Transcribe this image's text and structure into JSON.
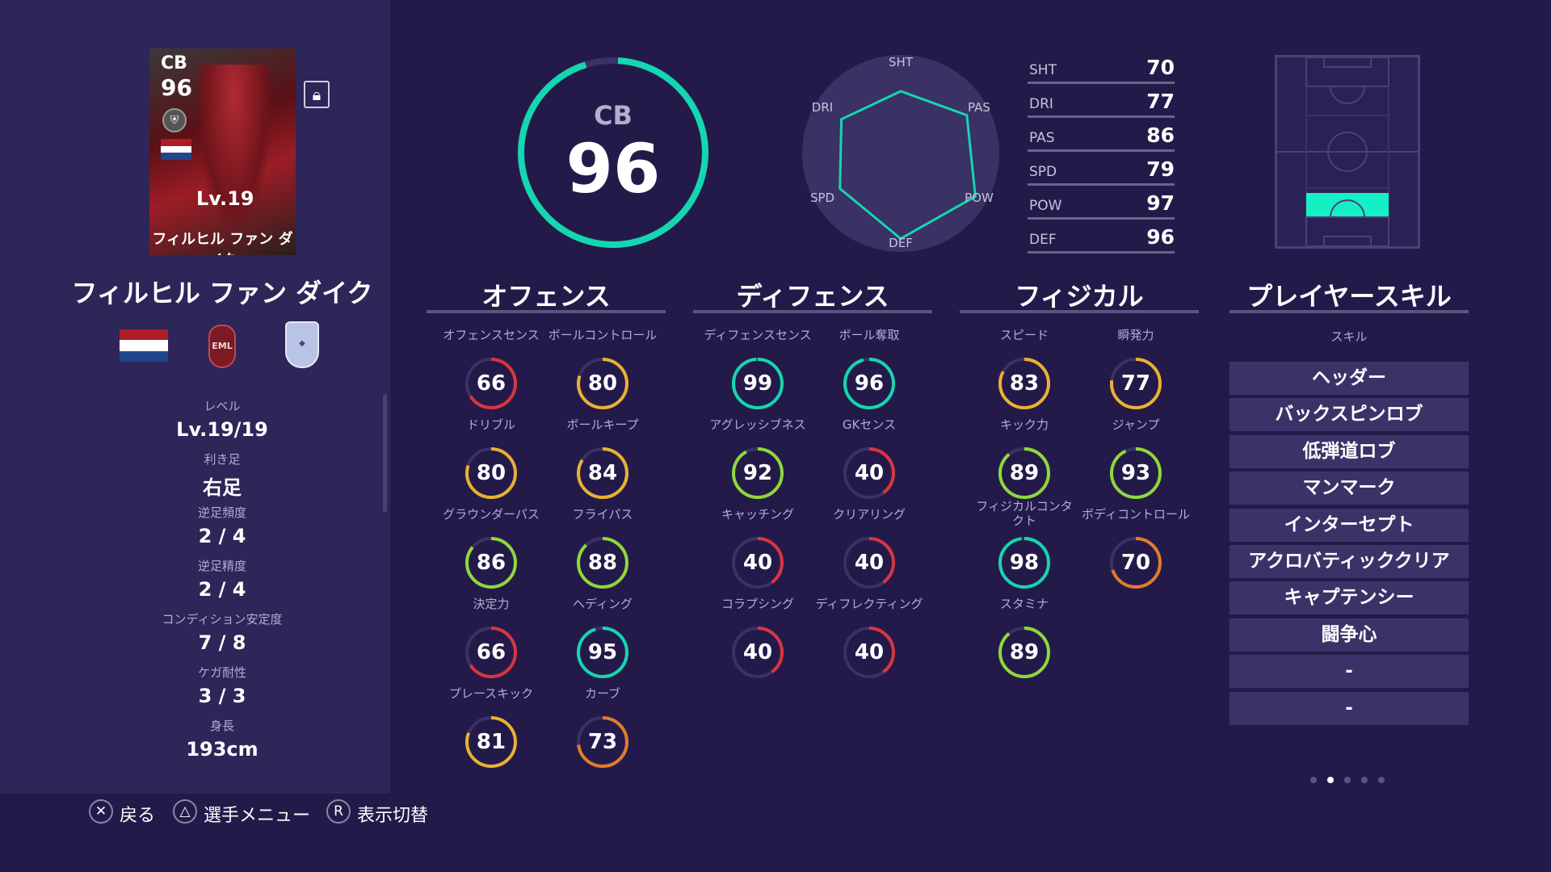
{
  "colors": {
    "teal": "#14d6b0",
    "green": "#8fd83a",
    "yellow": "#e8b230",
    "orange": "#e07c2c",
    "red": "#d8363f",
    "track": "#3a3164"
  },
  "card": {
    "position": "CB",
    "overall": "96",
    "level": "Lv.19",
    "name": "フィルヒル ファン ダイク"
  },
  "player": {
    "name": "フィルヒル ファン ダイク"
  },
  "info": [
    {
      "label": "レベル",
      "value": "Lv.19/19"
    },
    {
      "label": "利き足",
      "value": "右足"
    },
    {
      "label": "逆足頻度",
      "value": "2 / 4"
    },
    {
      "label": "逆足精度",
      "value": "2 / 4"
    },
    {
      "label": "コンディション安定度",
      "value": "7 / 8"
    },
    {
      "label": "ケガ耐性",
      "value": "3 / 3"
    },
    {
      "label": "身長",
      "value": "193cm"
    }
  ],
  "main": {
    "position": "CB",
    "overall": "96",
    "ring_fraction": 0.96
  },
  "radar": {
    "labels": [
      "SHT",
      "PAS",
      "POW",
      "DEF",
      "SPD",
      "DRI"
    ],
    "values": [
      70,
      86,
      97,
      96,
      79,
      77
    ]
  },
  "summary": [
    {
      "label": "SHT",
      "value": "70"
    },
    {
      "label": "DRI",
      "value": "77"
    },
    {
      "label": "PAS",
      "value": "86"
    },
    {
      "label": "SPD",
      "value": "79"
    },
    {
      "label": "POW",
      "value": "97"
    },
    {
      "label": "DEF",
      "value": "96"
    }
  ],
  "categories": [
    {
      "title": "オフェンス",
      "stats": [
        {
          "label": "オフェンスセンス",
          "value": "66"
        },
        {
          "label": "ボールコントロール",
          "value": "80"
        },
        {
          "label": "ドリブル",
          "value": "80"
        },
        {
          "label": "ボールキープ",
          "value": "84"
        },
        {
          "label": "グラウンダーパス",
          "value": "86"
        },
        {
          "label": "フライパス",
          "value": "88"
        },
        {
          "label": "決定力",
          "value": "66"
        },
        {
          "label": "ヘディング",
          "value": "95"
        },
        {
          "label": "プレースキック",
          "value": "81"
        },
        {
          "label": "カーブ",
          "value": "73"
        }
      ]
    },
    {
      "title": "ディフェンス",
      "stats": [
        {
          "label": "ディフェンスセンス",
          "value": "99"
        },
        {
          "label": "ボール奪取",
          "value": "96"
        },
        {
          "label": "アグレッシブネス",
          "value": "92"
        },
        {
          "label": "GKセンス",
          "value": "40"
        },
        {
          "label": "キャッチング",
          "value": "40"
        },
        {
          "label": "クリアリング",
          "value": "40"
        },
        {
          "label": "コラプシング",
          "value": "40"
        },
        {
          "label": "ディフレクティング",
          "value": "40"
        }
      ]
    },
    {
      "title": "フィジカル",
      "stats": [
        {
          "label": "スピード",
          "value": "83"
        },
        {
          "label": "瞬発力",
          "value": "77"
        },
        {
          "label": "キック力",
          "value": "89"
        },
        {
          "label": "ジャンプ",
          "value": "93"
        },
        {
          "label": "フィジカルコンタクト",
          "value": "98"
        },
        {
          "label": "ボディコントロール",
          "value": "70"
        },
        {
          "label": "スタミナ",
          "value": "89"
        }
      ]
    }
  ],
  "skills": {
    "title": "プレイヤースキル",
    "subtitle": "スキル",
    "items": [
      "ヘッダー",
      "バックスピンロブ",
      "低弾道ロブ",
      "マンマーク",
      "インターセプト",
      "アクロバティッククリア",
      "キャプテンシー",
      "闘争心",
      "-",
      "-"
    ]
  },
  "page_dots": {
    "count": 5,
    "active": 1
  },
  "footer": [
    {
      "icon": "✕",
      "label": "戻る"
    },
    {
      "icon": "△",
      "label": "選手メニュー"
    },
    {
      "icon": "R",
      "label": "表示切替"
    }
  ]
}
